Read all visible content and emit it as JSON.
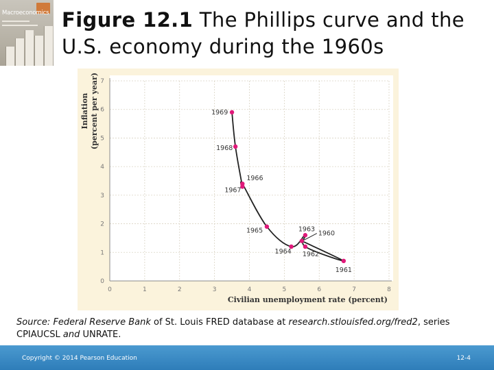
{
  "book_cover": {
    "title": "Macroeconomics"
  },
  "header": {
    "title_bold": "Figure 12.1",
    "title_rest": "  The Phillips curve and the U.S. economy during the 1960s"
  },
  "chart_data": {
    "type": "line",
    "title": "",
    "xlabel": "Civilian unemployment rate (percent)",
    "ylabel_line1": "Inflation",
    "ylabel_line2": "(percent per year)",
    "xlim": [
      0,
      8
    ],
    "ylim": [
      0,
      7
    ],
    "x_ticks": [
      "0",
      "1",
      "2",
      "3",
      "4",
      "5",
      "6",
      "7",
      "8"
    ],
    "y_ticks": [
      "0",
      "1",
      "2",
      "3",
      "4",
      "5",
      "6",
      "7"
    ],
    "grid": true,
    "series": [
      {
        "points": [
          {
            "label": "1960",
            "x": 5.5,
            "y": 1.4
          },
          {
            "label": "1961",
            "x": 6.7,
            "y": 0.7
          },
          {
            "label": "1962",
            "x": 5.6,
            "y": 1.2
          },
          {
            "label": "1963",
            "x": 5.6,
            "y": 1.6
          },
          {
            "label": "1964",
            "x": 5.2,
            "y": 1.2
          },
          {
            "label": "1965",
            "x": 4.5,
            "y": 1.9
          },
          {
            "label": "1966",
            "x": 3.8,
            "y": 3.4
          },
          {
            "label": "1967",
            "x": 3.8,
            "y": 3.3
          },
          {
            "label": "1968",
            "x": 3.6,
            "y": 4.7
          },
          {
            "label": "1969",
            "x": 3.5,
            "y": 5.9
          }
        ]
      }
    ]
  },
  "source": {
    "prefix": "Source: Federal Reserve Bank",
    "middle": " of St. Louis FRED database at ",
    "url": "research.stlouisfed.org/fred2",
    "line2_a": ", series CPIAUCSL",
    "line2_b": " and ",
    "line2_c": "UNRATE."
  },
  "footer": {
    "copyright": "Copyright © 2014 Pearson Education",
    "page_number": "12-4"
  },
  "colors": {
    "point": "#e0197a",
    "footer": "#2e7db9",
    "chart_bg": "#fbf3dc"
  }
}
